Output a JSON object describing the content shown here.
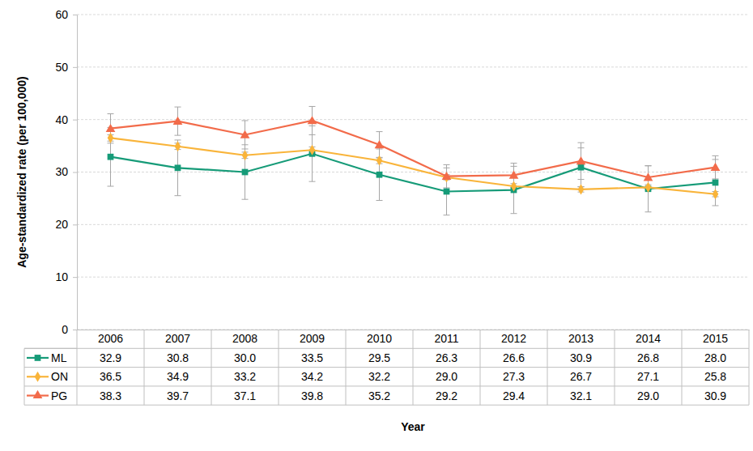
{
  "chart_data": {
    "type": "line",
    "x_label": "Year",
    "y_label": "Age-standardized rate (per 100,000)",
    "categories": [
      "2006",
      "2007",
      "2008",
      "2009",
      "2010",
      "2011",
      "2012",
      "2013",
      "2014",
      "2015"
    ],
    "ylim": [
      0,
      60
    ],
    "yticks": [
      0,
      10,
      20,
      30,
      40,
      50,
      60
    ],
    "grid": true,
    "series": [
      {
        "name": "ML",
        "color": "#169b78",
        "marker": "square",
        "values": [
          32.9,
          30.8,
          30.0,
          33.5,
          29.5,
          26.3,
          26.6,
          30.9,
          26.8,
          28.0
        ],
        "value_labels": [
          "32.9",
          "30.8",
          "30.0",
          "33.5",
          "29.5",
          "26.3",
          "26.6",
          "30.9",
          "26.8",
          "28.0"
        ],
        "errors": [
          5.6,
          5.3,
          5.2,
          5.3,
          4.9,
          4.5,
          4.5,
          3.7,
          4.4,
          4.4
        ]
      },
      {
        "name": "ON",
        "color": "#f9b43a",
        "marker": "diamond",
        "values": [
          36.5,
          34.9,
          33.2,
          34.2,
          32.2,
          29.0,
          27.3,
          26.7,
          27.1,
          25.8
        ],
        "value_labels": [
          "36.5",
          "34.9",
          "33.2",
          "34.2",
          "32.2",
          "29.0",
          "27.3",
          "26.7",
          "27.1",
          "25.8"
        ],
        "errors": [
          0.6,
          0.6,
          0.6,
          0.6,
          0.6,
          0.5,
          0.5,
          0.5,
          0.5,
          0.5
        ]
      },
      {
        "name": "PG",
        "color": "#f26b4a",
        "marker": "triangle",
        "values": [
          38.3,
          39.7,
          37.1,
          39.8,
          35.2,
          29.2,
          29.4,
          32.1,
          29.0,
          30.9
        ],
        "value_labels": [
          "38.3",
          "39.7",
          "37.1",
          "39.8",
          "35.2",
          "29.2",
          "29.4",
          "32.1",
          "29.0",
          "30.9"
        ],
        "errors": [
          2.8,
          2.7,
          2.7,
          2.7,
          2.5,
          2.2,
          2.3,
          3.5,
          2.2,
          2.2
        ]
      }
    ]
  }
}
